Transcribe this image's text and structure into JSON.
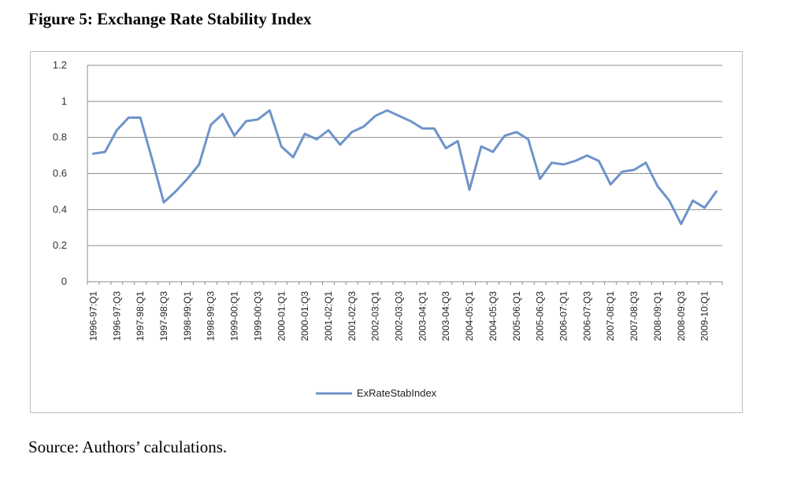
{
  "figure_title": "Figure 5: Exchange Rate Stability Index",
  "source_note": "Source: Authors’ calculations.",
  "colors": {
    "series": "#6e94c9",
    "grid": "#8c8c8c",
    "axis": "#8c8c8c"
  },
  "chart_data": {
    "type": "line",
    "title": "",
    "xlabel": "",
    "ylabel": "",
    "ylim": [
      0,
      1.2
    ],
    "yticks": [
      "0",
      "0.2",
      "0.4",
      "0.6",
      "0.8",
      "1",
      "1.2"
    ],
    "grid": true,
    "legend_position": "bottom",
    "x_tick_labels": [
      "1996-97:Q1",
      "1996-97:Q3",
      "1997-98:Q1",
      "1997-98:Q3",
      "1998-99:Q1",
      "1998-99:Q3",
      "1999-00:Q1",
      "1999-00:Q3",
      "2000-01:Q1",
      "2000-01:Q3",
      "2001-02:Q1",
      "2001-02:Q3",
      "2002-03:Q1",
      "2002-03:Q3",
      "2003-04:Q1",
      "2003-04:Q3",
      "2004-05:Q1",
      "2004-05:Q3",
      "2005-06:Q1",
      "2005-06:Q3",
      "2006-07:Q1",
      "2006-07:Q3",
      "2007-08:Q1",
      "2007-08:Q3",
      "2008-09:Q1",
      "2008-09:Q3",
      "2009-10:Q1"
    ],
    "series": [
      {
        "name": "ExRateStabIndex",
        "values": [
          0.71,
          0.72,
          0.84,
          0.91,
          0.91,
          0.68,
          0.44,
          0.5,
          0.57,
          0.65,
          0.87,
          0.93,
          0.81,
          0.89,
          0.9,
          0.95,
          0.75,
          0.69,
          0.82,
          0.79,
          0.84,
          0.76,
          0.83,
          0.86,
          0.92,
          0.95,
          0.92,
          0.89,
          0.85,
          0.85,
          0.74,
          0.78,
          0.51,
          0.75,
          0.72,
          0.81,
          0.83,
          0.79,
          0.57,
          0.66,
          0.65,
          0.67,
          0.7,
          0.67,
          0.54,
          0.61,
          0.62,
          0.66,
          0.53,
          0.45,
          0.32,
          0.45,
          0.41,
          0.5
        ]
      }
    ]
  }
}
